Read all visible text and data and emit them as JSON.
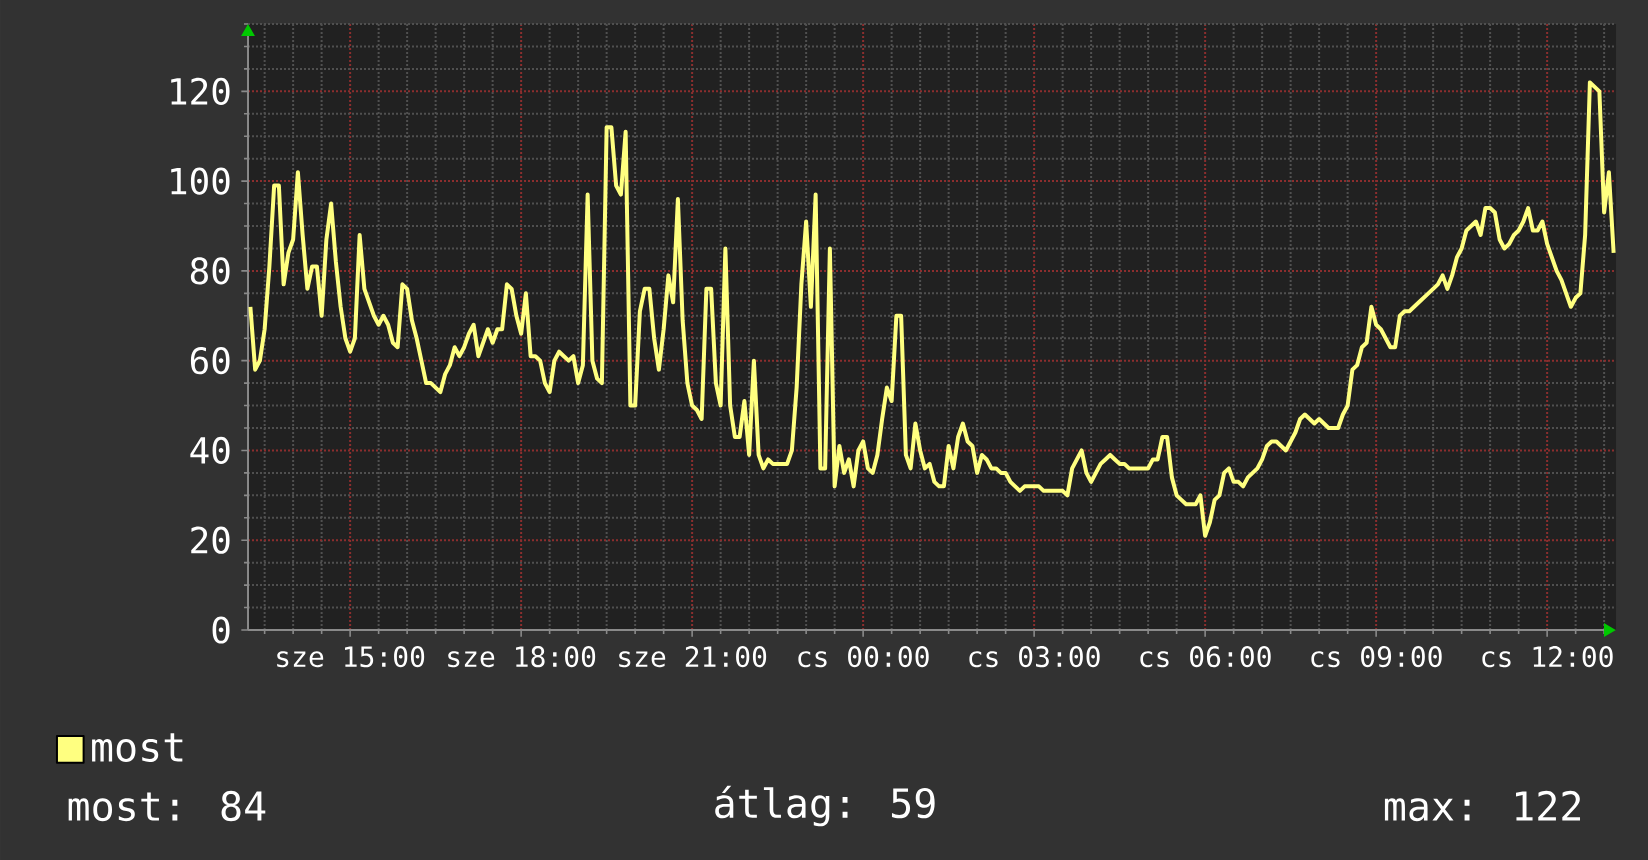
{
  "chart_data": {
    "type": "line",
    "categories": [
      null,
      null,
      null,
      null,
      null,
      null,
      null,
      null,
      null,
      null,
      null,
      null,
      null,
      null,
      null,
      null,
      null,
      null,
      null,
      null,
      null,
      "sze 15:00",
      null,
      null,
      null,
      null,
      null,
      null,
      null,
      null,
      null,
      null,
      null,
      null,
      null,
      null,
      null,
      null,
      null,
      null,
      null,
      null,
      null,
      null,
      null,
      null,
      null,
      null,
      null,
      null,
      null,
      null,
      null,
      null,
      null,
      null,
      null,
      "sze 18:00",
      null,
      null,
      null,
      null,
      null,
      null,
      null,
      null,
      null,
      null,
      null,
      null,
      null,
      null,
      null,
      null,
      null,
      null,
      null,
      null,
      null,
      null,
      null,
      null,
      null,
      null,
      null,
      null,
      null,
      null,
      null,
      null,
      null,
      null,
      null,
      "sze 21:00",
      null,
      null,
      null,
      null,
      null,
      null,
      null,
      null,
      null,
      null,
      null,
      null,
      null,
      null,
      null,
      null,
      null,
      null,
      null,
      null,
      null,
      null,
      null,
      null,
      null,
      null,
      null,
      null,
      null,
      null,
      null,
      null,
      null,
      null,
      null,
      "cs 00:00",
      null,
      null,
      null,
      null,
      null,
      null,
      null,
      null,
      null,
      null,
      null,
      null,
      null,
      null,
      null,
      null,
      null,
      null,
      null,
      null,
      null,
      null,
      null,
      null,
      null,
      null,
      null,
      null,
      null,
      null,
      null,
      null,
      null,
      null,
      null,
      "cs 03:00",
      null,
      null,
      null,
      null,
      null,
      null,
      null,
      null,
      null,
      null,
      null,
      null,
      null,
      null,
      null,
      null,
      null,
      null,
      null,
      null,
      null,
      null,
      null,
      null,
      null,
      null,
      null,
      null,
      null,
      null,
      null,
      null,
      null,
      null,
      null,
      "cs 06:00",
      null,
      null,
      null,
      null,
      null,
      null,
      null,
      null,
      null,
      null,
      null,
      null,
      null,
      null,
      null,
      null,
      null,
      null,
      null,
      null,
      null,
      null,
      null,
      null,
      null,
      null,
      null,
      null,
      null,
      null,
      null,
      null,
      null,
      null,
      null,
      "cs 09:00",
      null,
      null,
      null,
      null,
      null,
      null,
      null,
      null,
      null,
      null,
      null,
      null,
      null,
      null,
      null,
      null,
      null,
      null,
      null,
      null,
      null,
      null,
      null,
      null,
      null,
      null,
      null,
      null,
      null,
      null,
      null,
      null,
      null,
      null,
      null,
      "cs 12:00",
      null,
      null,
      null,
      null,
      null,
      null,
      null,
      null,
      null,
      null,
      null,
      null,
      null,
      null
    ],
    "series": [
      {
        "name": "most",
        "color": "#ffff80",
        "values": [
          72,
          58,
          60,
          67,
          81,
          99,
          99,
          77,
          84,
          87,
          102,
          88,
          76,
          81,
          81,
          70,
          87,
          95,
          82,
          72,
          65,
          62,
          65,
          88,
          76,
          73,
          70,
          68,
          70,
          68,
          64,
          63,
          77,
          76,
          69,
          65,
          60,
          55,
          55,
          54,
          53,
          57,
          59,
          63,
          61,
          63,
          66,
          68,
          61,
          64,
          67,
          64,
          67,
          67,
          77,
          76,
          70,
          66,
          75,
          61,
          61,
          60,
          55,
          53,
          60,
          62,
          61,
          60,
          61,
          55,
          59,
          97,
          60,
          56,
          55,
          112,
          112,
          99,
          97,
          111,
          50,
          50,
          71,
          76,
          76,
          65,
          58,
          67,
          79,
          73,
          96,
          69,
          55,
          50,
          49,
          47,
          76,
          76,
          55,
          50,
          85,
          50,
          43,
          43,
          51,
          39,
          60,
          39,
          36,
          38,
          37,
          37,
          37,
          37,
          40,
          54,
          77,
          91,
          72,
          97,
          36,
          36,
          85,
          32,
          41,
          35,
          38,
          32,
          40,
          42,
          36,
          35,
          39,
          47,
          54,
          51,
          70,
          70,
          39,
          36,
          46,
          40,
          36,
          37,
          33,
          32,
          32,
          41,
          36,
          43,
          46,
          42,
          41,
          35,
          39,
          38,
          36,
          36,
          35,
          35,
          33,
          32,
          31,
          32,
          32,
          32,
          32,
          31,
          31,
          31,
          31,
          31,
          30,
          36,
          38,
          40,
          35,
          33,
          35,
          37,
          38,
          39,
          38,
          37,
          37,
          36,
          36,
          36,
          36,
          36,
          38,
          38,
          43,
          43,
          34,
          30,
          29,
          28,
          28,
          28,
          30,
          21,
          24,
          29,
          30,
          35,
          36,
          33,
          33,
          32,
          34,
          35,
          36,
          38,
          41,
          42,
          42,
          41,
          40,
          42,
          44,
          47,
          48,
          47,
          46,
          47,
          46,
          45,
          45,
          45,
          48,
          50,
          58,
          59,
          63,
          64,
          72,
          68,
          67,
          65,
          63,
          63,
          70,
          71,
          71,
          72,
          73,
          74,
          75,
          76,
          77,
          79,
          76,
          79,
          83,
          85,
          89,
          90,
          91,
          88,
          94,
          94,
          93,
          87,
          85,
          86,
          88,
          89,
          91,
          94,
          89,
          89,
          91,
          86,
          83,
          80,
          78,
          75,
          72,
          74,
          75,
          88,
          122,
          121,
          120,
          93,
          102,
          84
        ]
      }
    ],
    "ylim": [
      0,
      135
    ],
    "yticks": [
      0,
      20,
      40,
      60,
      80,
      100,
      120
    ],
    "grid": true,
    "legend": "bottom left",
    "annotations": [
      "most: 84",
      "átlag: 59",
      "max: 122"
    ]
  }
}
